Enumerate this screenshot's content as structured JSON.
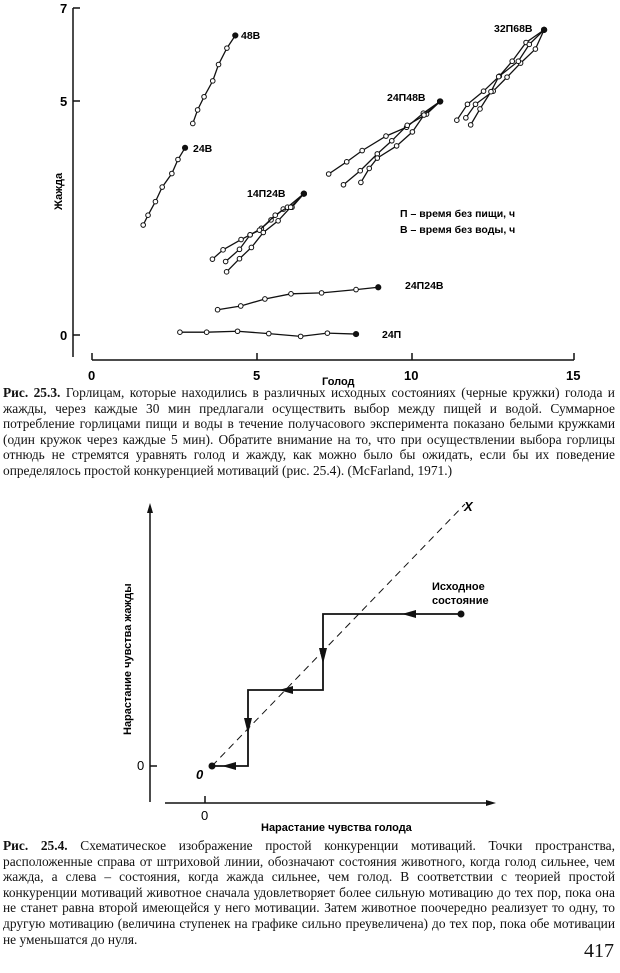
{
  "figure1": {
    "caption_label": "Рис. 25.3.",
    "caption_text": "Горлицам, которые находились в различных исходных состояниях (черные кружки) голода и жажды, через каждые 30 мин предлагали осуществить выбор между пищей и водой. Суммарное потребление горлицами пищи и воды в течение получасового эксперимента показано белыми кружками (один кружок через каждые 5 мин). Обратите внимание на то, что при осуществлении выбора горлицы отнюдь не стремятся уравнять голод и жажду, как можно было бы ожидать, если бы их поведение определялось простой конкуренцией мотиваций (рис. 25.4). (McFarland, 1971.)",
    "legend": [
      "П – время без пищи, ч",
      "В – время без воды, ч"
    ]
  },
  "chart_data": {
    "type": "line",
    "xlabel": "Голод",
    "ylabel": "Жажда",
    "xlim": [
      0,
      15
    ],
    "ylim": [
      -0.5,
      7
    ],
    "xticks": [
      "0",
      "5",
      "10",
      "15"
    ],
    "yticks": [
      "0",
      "5",
      "7"
    ],
    "grid": false,
    "series": [
      {
        "name": "48В",
        "branches": [
          [
            [
              3.13,
              4.52
            ],
            [
              3.28,
              4.81
            ],
            [
              3.48,
              5.09
            ],
            [
              3.75,
              5.43
            ],
            [
              3.93,
              5.78
            ],
            [
              4.19,
              6.13
            ],
            [
              4.45,
              6.4
            ]
          ]
        ]
      },
      {
        "name": "24В",
        "branches": [
          [
            [
              1.59,
              2.35
            ],
            [
              1.74,
              2.56
            ],
            [
              1.97,
              2.85
            ],
            [
              2.18,
              3.16
            ],
            [
              2.48,
              3.45
            ],
            [
              2.67,
              3.75
            ],
            [
              2.89,
              4.0
            ]
          ]
        ]
      },
      {
        "name": "14П24В",
        "branches": [
          [
            [
              3.74,
              1.62
            ],
            [
              4.07,
              1.82
            ],
            [
              4.63,
              2.04
            ],
            [
              4.91,
              2.14
            ],
            [
              5.26,
              2.28
            ],
            [
              5.56,
              2.46
            ],
            [
              5.94,
              2.69
            ],
            [
              6.21,
              2.73
            ],
            [
              6.58,
              3.02
            ]
          ],
          [
            [
              4.15,
              1.57
            ],
            [
              4.58,
              1.83
            ],
            [
              4.91,
              2.14
            ],
            [
              5.2,
              2.24
            ],
            [
              5.69,
              2.56
            ],
            [
              6.07,
              2.73
            ],
            [
              6.58,
              3.02
            ]
          ],
          [
            [
              4.18,
              1.35
            ],
            [
              4.58,
              1.63
            ],
            [
              4.95,
              1.87
            ],
            [
              5.32,
              2.19
            ],
            [
              5.78,
              2.44
            ],
            [
              6.17,
              2.73
            ],
            [
              6.58,
              3.02
            ]
          ]
        ]
      },
      {
        "name": "24П48В",
        "branches": [
          [
            [
              7.35,
              3.44
            ],
            [
              7.91,
              3.7
            ],
            [
              8.39,
              3.94
            ],
            [
              9.13,
              4.25
            ],
            [
              9.77,
              4.44
            ],
            [
              10.29,
              4.74
            ],
            [
              10.81,
              4.99
            ]
          ],
          [
            [
              7.81,
              3.21
            ],
            [
              8.33,
              3.51
            ],
            [
              8.86,
              3.87
            ],
            [
              9.31,
              4.15
            ],
            [
              9.79,
              4.48
            ],
            [
              10.39,
              4.72
            ],
            [
              10.81,
              4.99
            ]
          ],
          [
            [
              8.35,
              3.26
            ],
            [
              8.61,
              3.56
            ],
            [
              8.86,
              3.78
            ],
            [
              9.46,
              4.04
            ],
            [
              9.95,
              4.34
            ],
            [
              10.31,
              4.7
            ],
            [
              10.81,
              4.99
            ]
          ]
        ]
      },
      {
        "name": "32П68В",
        "branches": [
          [
            [
              11.33,
              4.59
            ],
            [
              11.66,
              4.93
            ],
            [
              12.16,
              5.21
            ],
            [
              12.65,
              5.53
            ],
            [
              13.05,
              5.85
            ],
            [
              13.48,
              6.25
            ],
            [
              14.04,
              6.52
            ]
          ],
          [
            [
              11.61,
              4.64
            ],
            [
              11.91,
              4.93
            ],
            [
              12.46,
              5.21
            ],
            [
              12.89,
              5.51
            ],
            [
              13.31,
              5.81
            ],
            [
              13.77,
              6.11
            ],
            [
              14.04,
              6.52
            ]
          ],
          [
            [
              11.76,
              4.49
            ],
            [
              12.05,
              4.83
            ],
            [
              12.39,
              5.2
            ],
            [
              12.63,
              5.52
            ],
            [
              13.24,
              5.85
            ],
            [
              13.58,
              6.21
            ],
            [
              14.04,
              6.52
            ]
          ]
        ]
      },
      {
        "name": "24П24В",
        "branches": [
          [
            [
              3.9,
              0.54
            ],
            [
              4.62,
              0.62
            ],
            [
              5.37,
              0.77
            ],
            [
              6.18,
              0.88
            ],
            [
              7.13,
              0.9
            ],
            [
              8.2,
              0.97
            ],
            [
              8.89,
              1.02
            ]
          ]
        ]
      },
      {
        "name": "24П",
        "branches": [
          [
            [
              2.73,
              0.06
            ],
            [
              3.56,
              0.06
            ],
            [
              4.52,
              0.08
            ],
            [
              5.49,
              0.03
            ],
            [
              6.48,
              -0.03
            ],
            [
              7.31,
              0.04
            ],
            [
              8.2,
              0.02
            ]
          ]
        ]
      }
    ]
  },
  "figure2": {
    "xlabel": "Нарастание чувства голода",
    "ylabel": "Нарастание чувства жажды",
    "x_tick": "0",
    "y_tick": "0",
    "origin_label": "0",
    "line_label": "X",
    "start_label_1": "Исходное",
    "start_label_2": "состояние",
    "caption_label": "Рис. 25.4.",
    "caption_text": "Схематическое изображение простой конкуренции мотиваций. Точки пространства, расположенные справа от штриховой линии, обозначают состояния животного, когда голод сильнее, чем жажда, а слева – состояния, когда жажда сильнее, чем голод. В соответствии с теорией простой конкуренции мотиваций животное сначала удовлетворяет более сильную мотивацию до тех пор, пока она не станет равна второй имеющейся у него мотивации. Затем животное поочередно реализует то одну, то другую мотивацию (величина ступенек на графике сильно преувеличена) до тех пор, пока обе мотивации не уменьшатся до нуля."
  },
  "page_number": "417"
}
